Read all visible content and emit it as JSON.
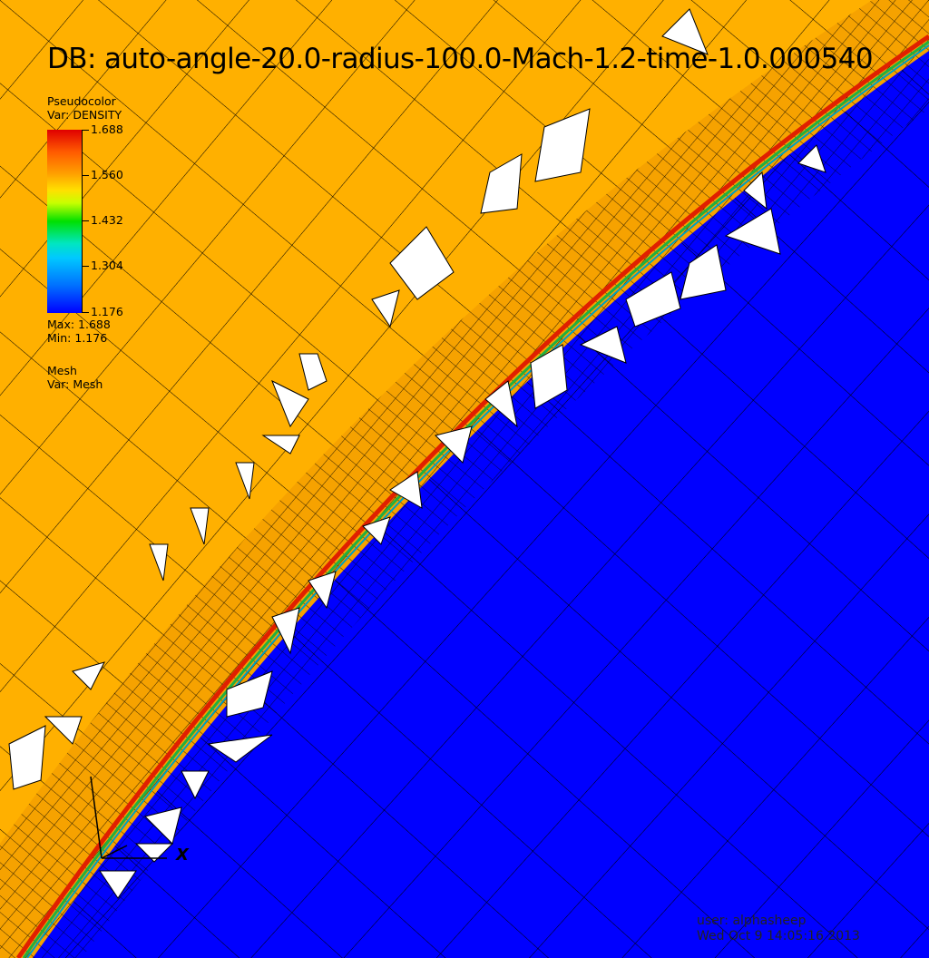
{
  "title": "DB: auto-angle-20.0-radius-100.0-Mach-1.2-time-1.0.000540",
  "legend": {
    "plot_type": "Pseudocolor",
    "variable": "Var: DENSITY",
    "ticks": [
      "1.688",
      "1.560",
      "1.432",
      "1.304",
      "1.176"
    ],
    "max": "Max:  1.688",
    "min": "Min:  1.176"
  },
  "mesh_legend": {
    "plot_type": "Mesh",
    "variable": "Var: Mesh"
  },
  "axis": {
    "x_label": "X"
  },
  "footer": {
    "user": "user: alphasheep",
    "timestamp": "Wed Oct  9 14:05:16 2013"
  },
  "colors": {
    "upstream": "#ffb000",
    "downstream": "#0000ff",
    "shock": "#d08000",
    "mesh_line": "#000000",
    "void": "#ffffff"
  }
}
